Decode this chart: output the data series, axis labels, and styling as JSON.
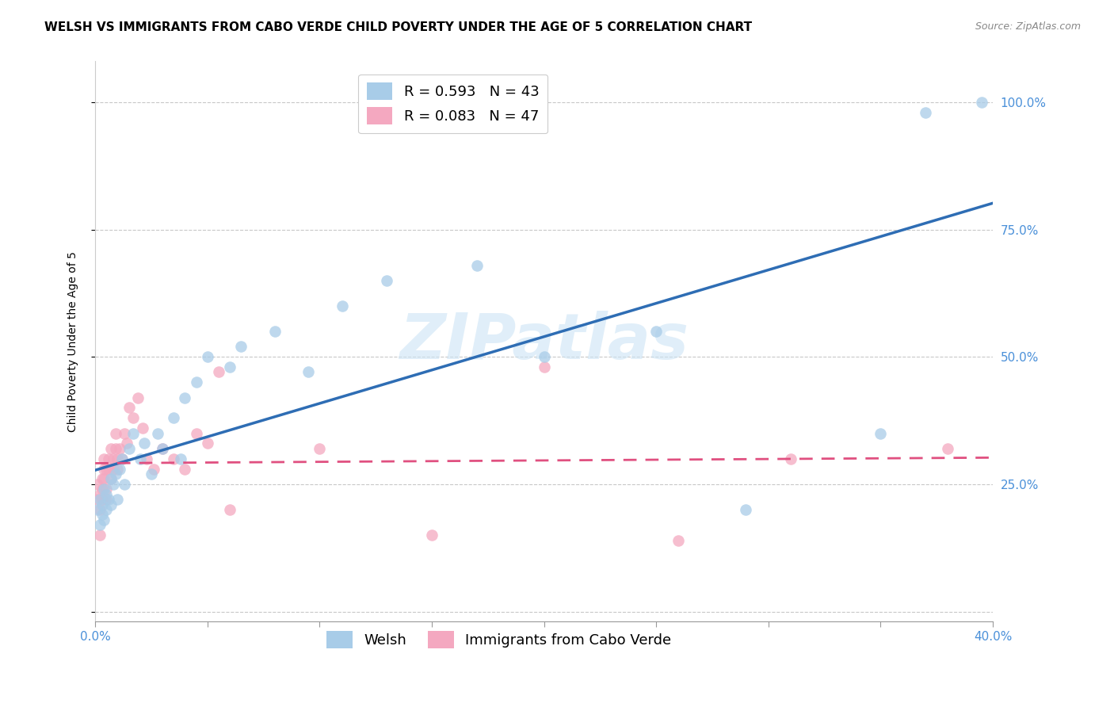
{
  "title": "WELSH VS IMMIGRANTS FROM CABO VERDE CHILD POVERTY UNDER THE AGE OF 5 CORRELATION CHART",
  "source": "Source: ZipAtlas.com",
  "ylabel": "Child Poverty Under the Age of 5",
  "xlim": [
    0.0,
    0.4
  ],
  "ylim": [
    -0.02,
    1.08
  ],
  "xticks": [
    0.0,
    0.05,
    0.1,
    0.15,
    0.2,
    0.25,
    0.3,
    0.35,
    0.4
  ],
  "xtick_labels": [
    "0.0%",
    "",
    "",
    "",
    "",
    "",
    "",
    "",
    "40.0%"
  ],
  "yticks": [
    0.0,
    0.25,
    0.5,
    0.75,
    1.0
  ],
  "ytick_labels_right": [
    "",
    "25.0%",
    "50.0%",
    "75.0%",
    "100.0%"
  ],
  "welsh_color": "#a8cce8",
  "cabo_verde_color": "#f4a8c0",
  "welsh_line_color": "#2e6db4",
  "cabo_verde_line_color": "#e05080",
  "cabo_verde_line_dashed": true,
  "R_welsh": 0.593,
  "N_welsh": 43,
  "R_cabo": 0.083,
  "N_cabo": 47,
  "legend_labels": [
    "Welsh",
    "Immigrants from Cabo Verde"
  ],
  "watermark": "ZIPatlas",
  "welsh_scatter_x": [
    0.001,
    0.002,
    0.002,
    0.003,
    0.003,
    0.004,
    0.004,
    0.005,
    0.005,
    0.006,
    0.007,
    0.007,
    0.008,
    0.009,
    0.01,
    0.011,
    0.012,
    0.013,
    0.015,
    0.017,
    0.02,
    0.022,
    0.025,
    0.028,
    0.03,
    0.035,
    0.038,
    0.04,
    0.045,
    0.05,
    0.06,
    0.065,
    0.08,
    0.095,
    0.11,
    0.13,
    0.17,
    0.2,
    0.25,
    0.29,
    0.35,
    0.37,
    0.395
  ],
  "welsh_scatter_y": [
    0.2,
    0.17,
    0.22,
    0.19,
    0.21,
    0.24,
    0.18,
    0.2,
    0.23,
    0.22,
    0.26,
    0.21,
    0.25,
    0.27,
    0.22,
    0.28,
    0.3,
    0.25,
    0.32,
    0.35,
    0.3,
    0.33,
    0.27,
    0.35,
    0.32,
    0.38,
    0.3,
    0.42,
    0.45,
    0.5,
    0.48,
    0.52,
    0.55,
    0.47,
    0.6,
    0.65,
    0.68,
    0.5,
    0.55,
    0.2,
    0.35,
    0.98,
    1.0
  ],
  "cabo_scatter_x": [
    0.001,
    0.001,
    0.002,
    0.002,
    0.002,
    0.003,
    0.003,
    0.003,
    0.004,
    0.004,
    0.004,
    0.005,
    0.005,
    0.005,
    0.006,
    0.006,
    0.007,
    0.007,
    0.008,
    0.008,
    0.009,
    0.009,
    0.01,
    0.01,
    0.011,
    0.012,
    0.013,
    0.014,
    0.015,
    0.017,
    0.019,
    0.021,
    0.023,
    0.026,
    0.03,
    0.035,
    0.04,
    0.045,
    0.05,
    0.055,
    0.06,
    0.1,
    0.15,
    0.2,
    0.26,
    0.31,
    0.38
  ],
  "cabo_scatter_y": [
    0.22,
    0.25,
    0.2,
    0.23,
    0.15,
    0.26,
    0.24,
    0.22,
    0.28,
    0.26,
    0.3,
    0.28,
    0.24,
    0.22,
    0.3,
    0.28,
    0.26,
    0.32,
    0.28,
    0.3,
    0.32,
    0.35,
    0.3,
    0.28,
    0.32,
    0.3,
    0.35,
    0.33,
    0.4,
    0.38,
    0.42,
    0.36,
    0.3,
    0.28,
    0.32,
    0.3,
    0.28,
    0.35,
    0.33,
    0.47,
    0.2,
    0.32,
    0.15,
    0.48,
    0.14,
    0.3,
    0.32
  ],
  "background_color": "#ffffff",
  "grid_color": "#c8c8c8",
  "title_fontsize": 11,
  "axis_label_fontsize": 10,
  "tick_fontsize": 11,
  "legend_fontsize": 13,
  "source_fontsize": 9,
  "marker_size": 110,
  "marker_alpha": 0.75
}
